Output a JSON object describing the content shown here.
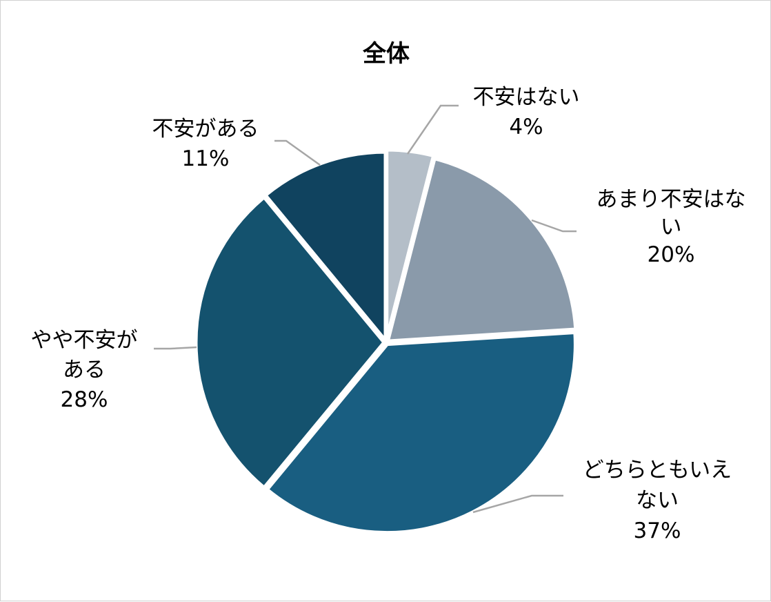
{
  "chart_data": {
    "type": "pie",
    "title": "全体",
    "start": "12 o'clock, clockwise",
    "slices": [
      {
        "label": "不安はない",
        "value": 4,
        "value_label": "4%",
        "color": "#b4bec8"
      },
      {
        "label": "あまり不安はない",
        "value": 20,
        "value_label": "20%",
        "color": "#8a9aaa"
      },
      {
        "label": "どちらともいえない",
        "value": 37,
        "value_label": "37%",
        "color": "#195e81"
      },
      {
        "label": "やや不安がある",
        "value": 28,
        "value_label": "28%",
        "color": "#14526e"
      },
      {
        "label": "不安がある",
        "value": 11,
        "value_label": "11%",
        "color": "#10435f"
      }
    ],
    "slice_separator_color": "#ffffff",
    "leader_line_color": "#a6a6a6"
  }
}
